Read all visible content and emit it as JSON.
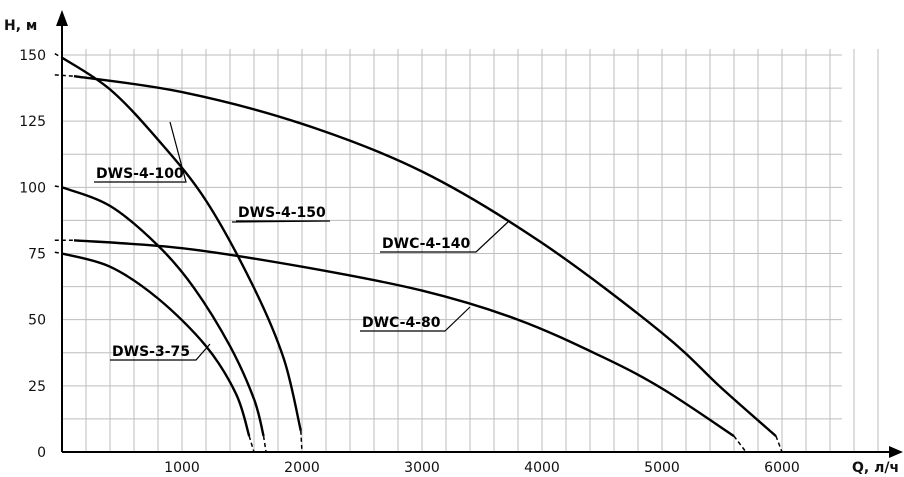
{
  "chart_data": {
    "type": "line",
    "xlabel": "Q, л/ч",
    "ylabel": "H, м",
    "xlim": [
      0,
      6800
    ],
    "ylim": [
      0,
      150
    ],
    "x_ticks": [
      1000,
      2000,
      3000,
      4000,
      5000,
      6000
    ],
    "y_ticks": [
      0,
      25,
      50,
      75,
      100,
      125,
      150
    ],
    "grid": true,
    "series": [
      {
        "name": "DWS-3-75",
        "solid": [
          [
            0,
            75
          ],
          [
            400,
            70
          ],
          [
            800,
            58
          ],
          [
            1200,
            40
          ],
          [
            1450,
            22
          ],
          [
            1560,
            6
          ]
        ],
        "dash_start": [
          [
            -60,
            75.5
          ],
          [
            0,
            75
          ]
        ],
        "dash_end": [
          [
            1560,
            6
          ],
          [
            1600,
            0
          ]
        ]
      },
      {
        "name": "DWS-4-100",
        "solid": [
          [
            0,
            100
          ],
          [
            400,
            93
          ],
          [
            800,
            78
          ],
          [
            1100,
            62
          ],
          [
            1400,
            40
          ],
          [
            1600,
            20
          ],
          [
            1680,
            6
          ]
        ],
        "dash_start": [
          [
            -60,
            100.5
          ],
          [
            0,
            100
          ]
        ],
        "dash_end": [
          [
            1680,
            6
          ],
          [
            1700,
            0
          ]
        ]
      },
      {
        "name": "DWS-4-150",
        "solid": [
          [
            0,
            149
          ],
          [
            400,
            137
          ],
          [
            800,
            118
          ],
          [
            1200,
            95
          ],
          [
            1600,
            62
          ],
          [
            1850,
            35
          ],
          [
            1990,
            8
          ]
        ],
        "dash_start": [
          [
            -60,
            150.5
          ],
          [
            0,
            149
          ]
        ],
        "dash_end": [
          [
            1990,
            8
          ],
          [
            2000,
            0
          ]
        ]
      },
      {
        "name": "DWC-4-80",
        "solid": [
          [
            100,
            80
          ],
          [
            1000,
            77
          ],
          [
            2000,
            70
          ],
          [
            3000,
            61
          ],
          [
            3800,
            50
          ],
          [
            4500,
            36
          ],
          [
            5000,
            24
          ],
          [
            5600,
            6
          ]
        ],
        "dash_start": [
          [
            -60,
            80
          ],
          [
            100,
            80
          ]
        ],
        "dash_end": [
          [
            5600,
            6
          ],
          [
            5700,
            0
          ]
        ]
      },
      {
        "name": "DWC-4-140",
        "solid": [
          [
            100,
            142
          ],
          [
            1000,
            136
          ],
          [
            2000,
            124
          ],
          [
            3000,
            106
          ],
          [
            4000,
            79
          ],
          [
            5000,
            45
          ],
          [
            5500,
            24
          ],
          [
            5950,
            6
          ]
        ],
        "dash_start": [
          [
            -60,
            142.5
          ],
          [
            100,
            142
          ]
        ],
        "dash_end": [
          [
            5950,
            6
          ],
          [
            6000,
            0
          ]
        ]
      }
    ]
  }
}
